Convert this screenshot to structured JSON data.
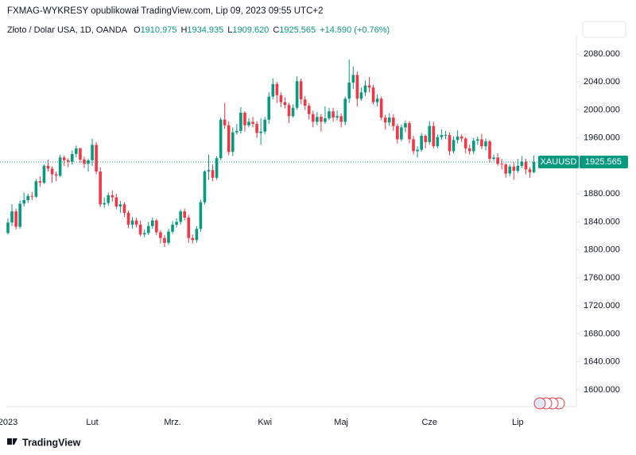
{
  "header": {
    "text": "FXMAG-WYKRESY opublikował TradingView.com, Lip 09, 2023 09:55 UTC+2"
  },
  "footer": {
    "brand": "TradingView"
  },
  "chart_data": {
    "type": "candlestick",
    "legend": {
      "symbol": "Złoto / Dolar USA, 1D, OANDA",
      "ohlc_letters": [
        "O",
        "H",
        "L",
        "C"
      ],
      "ohlc_values": [
        "1910.975",
        "1934.935",
        "1909.620",
        "1925.565"
      ],
      "change": "+14.590 (+0.76%)"
    },
    "ticker": "XAUUSD",
    "up_color": "#089981",
    "down_color": "#f23645",
    "categories": [
      "2023",
      null,
      null,
      null,
      null,
      null,
      null,
      null,
      null,
      null,
      null,
      null,
      null,
      null,
      null,
      null,
      null,
      null,
      null,
      null,
      null,
      "Lut",
      null,
      null,
      null,
      null,
      null,
      null,
      null,
      null,
      null,
      null,
      null,
      null,
      null,
      null,
      null,
      null,
      null,
      null,
      null,
      "Mrz.",
      null,
      null,
      null,
      null,
      null,
      null,
      null,
      null,
      null,
      null,
      null,
      null,
      null,
      null,
      null,
      null,
      null,
      null,
      null,
      null,
      null,
      null,
      "Kwi",
      null,
      null,
      null,
      null,
      null,
      null,
      null,
      null,
      null,
      null,
      null,
      null,
      null,
      null,
      null,
      null,
      null,
      null,
      "Maj",
      null,
      null,
      null,
      null,
      null,
      null,
      null,
      null,
      null,
      null,
      null,
      null,
      null,
      null,
      null,
      null,
      null,
      null,
      null,
      null,
      null,
      "Cze",
      null,
      null,
      null,
      null,
      null,
      null,
      null,
      null,
      null,
      null,
      null,
      null,
      null,
      null,
      null,
      null,
      null,
      null,
      null,
      null,
      null,
      "Lip",
      null,
      null,
      null,
      null
    ],
    "open": [
      1824,
      1839,
      1855,
      1833,
      1866,
      1871,
      1877,
      1876,
      1898,
      1896,
      1920,
      1916,
      1908,
      1906,
      1932,
      1928,
      1926,
      1937,
      1945,
      1929,
      1923,
      1928,
      1950,
      1912,
      1865,
      1867,
      1878,
      1875,
      1862,
      1865,
      1853,
      1836,
      1842,
      1836,
      1822,
      1824,
      1834,
      1842,
      1825,
      1817,
      1810,
      1826,
      1836,
      1840,
      1855,
      1846,
      1817,
      1814,
      1830,
      1868,
      1912,
      1914,
      1903,
      1931,
      1986,
      1978,
      1940,
      1968,
      1970,
      1996,
      1978,
      1983,
      1980,
      1967,
      1969,
      1986,
      2019,
      2037,
      2021,
      2011,
      2007,
      1991,
      2003,
      2041,
      2015,
      2006,
      1994,
      1983,
      1990,
      1983,
      1988,
      1998,
      1989,
      1991,
      1983,
      2016,
      2039,
      2050,
      2016,
      2025,
      2035,
      2032,
      2011,
      2016,
      1989,
      1982,
      1989,
      1977,
      1958,
      1975,
      1981,
      1958,
      1941,
      1943,
      1963,
      1954,
      1977,
      1948,
      1961,
      1964,
      1964,
      1941,
      1957,
      1962,
      1959,
      1945,
      1941,
      1956,
      1958,
      1948,
      1955,
      1930,
      1932,
      1923,
      1922,
      1909,
      1919,
      1913,
      1920,
      1926,
      1915,
      1910.975
    ],
    "high": [
      1845,
      1865,
      1859,
      1870,
      1882,
      1880,
      1883,
      1901,
      1905,
      1922,
      1929,
      1919,
      1912,
      1936,
      1935,
      1931,
      1942,
      1949,
      1946,
      1933,
      1930,
      1959,
      1954,
      1918,
      1875,
      1882,
      1885,
      1880,
      1870,
      1868,
      1856,
      1847,
      1846,
      1842,
      1829,
      1840,
      1846,
      1844,
      1828,
      1821,
      1830,
      1841,
      1845,
      1858,
      1859,
      1850,
      1822,
      1834,
      1872,
      1914,
      1936,
      1922,
      1934,
      1989,
      2010,
      1984,
      1975,
      1980,
      2004,
      1998,
      1988,
      1990,
      1984,
      1988,
      1990,
      2025,
      2045,
      2040,
      2025,
      2018,
      2010,
      2008,
      2048,
      2045,
      2020,
      2010,
      1999,
      1997,
      1994,
      2005,
      2003,
      2003,
      1999,
      1995,
      2019,
      2072,
      2062,
      2055,
      2032,
      2042,
      2047,
      2036,
      2022,
      2019,
      1993,
      1995,
      1994,
      1980,
      1979,
      1985,
      1984,
      1963,
      1948,
      1967,
      1965,
      1984,
      1983,
      1965,
      1972,
      1970,
      1968,
      1962,
      1971,
      1965,
      1961,
      1950,
      1960,
      1962,
      1966,
      1959,
      1957,
      1936,
      1938,
      1930,
      1924,
      1922,
      1925,
      1930,
      1934,
      1930,
      1918,
      1934.935
    ],
    "low": [
      1822,
      1834,
      1829,
      1830,
      1862,
      1867,
      1871,
      1874,
      1890,
      1894,
      1912,
      1896,
      1898,
      1904,
      1920,
      1918,
      1922,
      1932,
      1924,
      1917,
      1912,
      1920,
      1908,
      1861,
      1860,
      1863,
      1869,
      1858,
      1853,
      1847,
      1831,
      1830,
      1832,
      1819,
      1818,
      1821,
      1830,
      1821,
      1809,
      1804,
      1807,
      1823,
      1832,
      1836,
      1842,
      1810,
      1809,
      1810,
      1826,
      1865,
      1900,
      1898,
      1900,
      1928,
      1973,
      1935,
      1934,
      1965,
      1966,
      1969,
      1975,
      1975,
      1960,
      1950,
      1965,
      1980,
      2015,
      2010,
      2004,
      2002,
      1981,
      1989,
      2000,
      2008,
      2000,
      1986,
      1975,
      1978,
      1969,
      1980,
      1985,
      1983,
      1985,
      1975,
      1978,
      2010,
      2030,
      2005,
      2013,
      2020,
      2025,
      2008,
      2005,
      1985,
      1972,
      1977,
      1970,
      1952,
      1955,
      1968,
      1952,
      1936,
      1932,
      1940,
      1945,
      1950,
      1945,
      1945,
      1957,
      1958,
      1935,
      1938,
      1952,
      1954,
      1938,
      1936,
      1937,
      1950,
      1944,
      1942,
      1925,
      1927,
      1920,
      1915,
      1903,
      1905,
      1900,
      1910,
      1917,
      1908,
      1903,
      1909.62
    ],
    "close": [
      1839,
      1855,
      1833,
      1866,
      1871,
      1877,
      1876,
      1898,
      1896,
      1920,
      1916,
      1908,
      1906,
      1932,
      1928,
      1926,
      1937,
      1945,
      1929,
      1923,
      1928,
      1950,
      1912,
      1865,
      1867,
      1878,
      1875,
      1862,
      1865,
      1853,
      1836,
      1842,
      1836,
      1822,
      1824,
      1834,
      1842,
      1825,
      1817,
      1810,
      1826,
      1836,
      1840,
      1855,
      1846,
      1817,
      1814,
      1830,
      1868,
      1912,
      1914,
      1903,
      1931,
      1986,
      1978,
      1940,
      1968,
      1970,
      1996,
      1978,
      1983,
      1980,
      1967,
      1969,
      1986,
      2019,
      2037,
      2021,
      2011,
      2007,
      1991,
      2003,
      2041,
      2015,
      2006,
      1994,
      1983,
      1990,
      1983,
      1988,
      1998,
      1989,
      1991,
      1983,
      2016,
      2039,
      2050,
      2016,
      2025,
      2035,
      2032,
      2011,
      2016,
      1989,
      1982,
      1989,
      1977,
      1958,
      1975,
      1981,
      1958,
      1941,
      1943,
      1963,
      1954,
      1977,
      1948,
      1961,
      1964,
      1964,
      1941,
      1957,
      1962,
      1959,
      1945,
      1941,
      1956,
      1958,
      1948,
      1955,
      1930,
      1932,
      1923,
      1922,
      1909,
      1919,
      1913,
      1920,
      1926,
      1915,
      1910.975,
      1925.565
    ],
    "ylim": [
      1576,
      2106
    ],
    "yticks": [
      {
        "value": 1600,
        "label": "1600.000"
      },
      {
        "value": 1640,
        "label": "1640.000"
      },
      {
        "value": 1680,
        "label": "1680.000"
      },
      {
        "value": 1720,
        "label": "1720.000"
      },
      {
        "value": 1760,
        "label": "1760.000"
      },
      {
        "value": 1800,
        "label": "1800.000"
      },
      {
        "value": 1840,
        "label": "1840.000"
      },
      {
        "value": 1880,
        "label": "1880.000"
      },
      {
        "value": 1920,
        "label": "1920.000"
      },
      {
        "value": 1960,
        "label": "1960.000"
      },
      {
        "value": 2000,
        "label": "2000.000"
      },
      {
        "value": 2040,
        "label": "2040.000"
      },
      {
        "value": 2080,
        "label": "2080.000"
      }
    ],
    "grid": false
  }
}
